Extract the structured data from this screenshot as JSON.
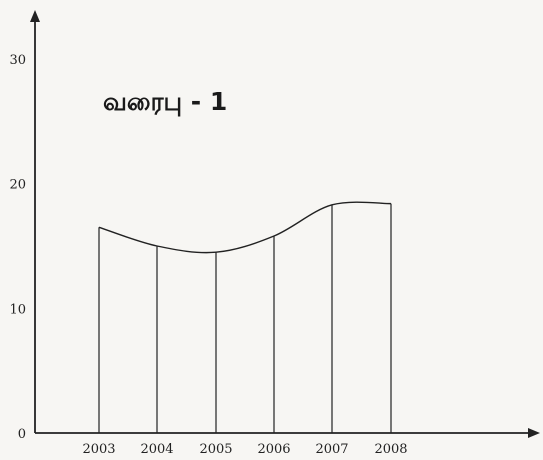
{
  "chart_data": {
    "type": "area",
    "title": "வரைபு - 1",
    "xlabel": "",
    "ylabel": "",
    "categories": [
      "2003",
      "2004",
      "2005",
      "2006",
      "2007",
      "2008"
    ],
    "values": [
      16.5,
      15.0,
      14.5,
      15.8,
      18.3,
      18.4
    ],
    "ylim": [
      0,
      33
    ],
    "yticks": [
      "0",
      "10",
      "20",
      "30"
    ],
    "grid": false,
    "legend": "none",
    "colors": {
      "line": "#222222",
      "background": "#f7f6f3"
    }
  }
}
